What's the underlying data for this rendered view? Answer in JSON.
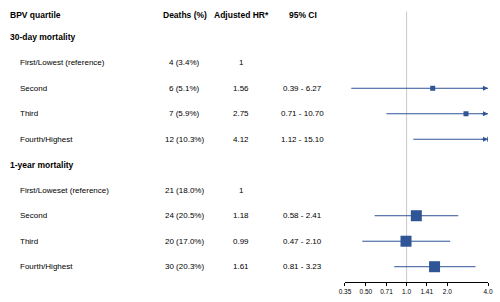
{
  "chart_data": {
    "type": "forest",
    "columns": [
      "BPV quartile",
      "Deaths (%)",
      "Adjusted HR*",
      "95% CI"
    ],
    "color": "#2f5597",
    "marker": "square",
    "log": "x",
    "grid": false,
    "xlim": [
      0.35,
      4.0
    ],
    "xticks": [
      0.35,
      {
        "value": 0.5,
        "label": "0.50"
      },
      0.71,
      {
        "value": 1,
        "label": "1.0"
      },
      1.41,
      {
        "value": 2,
        "label": "2.0"
      },
      {
        "value": 4,
        "label": "4.0"
      }
    ],
    "sections": [
      {
        "title": "30-day mortality",
        "rows": [
          {
            "label": "First/Lowest (reference)",
            "deaths": "4 (3.4%)",
            "hr": 1
          },
          {
            "label": "Second",
            "deaths": "6 (5.1%)",
            "hr": 1.56,
            "ci": [
              0.39,
              6.27
            ],
            "ci_label": "0.39 - 6.27"
          },
          {
            "label": "Third",
            "deaths": "7 (5.9%)",
            "hr": 2.75,
            "ci": [
              0.71,
              10.7
            ],
            "ci_label": "0.71 - 10.70"
          },
          {
            "label": "Fourth/Highest",
            "deaths": "12 (10.3%)",
            "hr": 4.12,
            "ci": [
              1.12,
              15.1
            ],
            "ci_label": "1.12 - 15.10"
          }
        ]
      },
      {
        "title": "1-year mortality",
        "rows": [
          {
            "label": "First/Loweset (reference)",
            "deaths": "21 (18.0%)",
            "hr": 1
          },
          {
            "label": "Second",
            "deaths": "24 (20.5%)",
            "hr": 1.18,
            "ci": [
              0.58,
              2.41
            ],
            "ci_label": "0.58 - 2.41"
          },
          {
            "label": "Third",
            "deaths": "20 (17.0%)",
            "hr": 0.99,
            "ci": [
              0.47,
              2.1
            ],
            "ci_label": "0.47 - 2.10"
          },
          {
            "label": "Fourth/Highest",
            "deaths": "30 (20.3%)",
            "hr": 1.61,
            "ci": [
              0.81,
              3.23
            ],
            "ci_label": "0.81 - 3.23"
          }
        ]
      }
    ]
  }
}
